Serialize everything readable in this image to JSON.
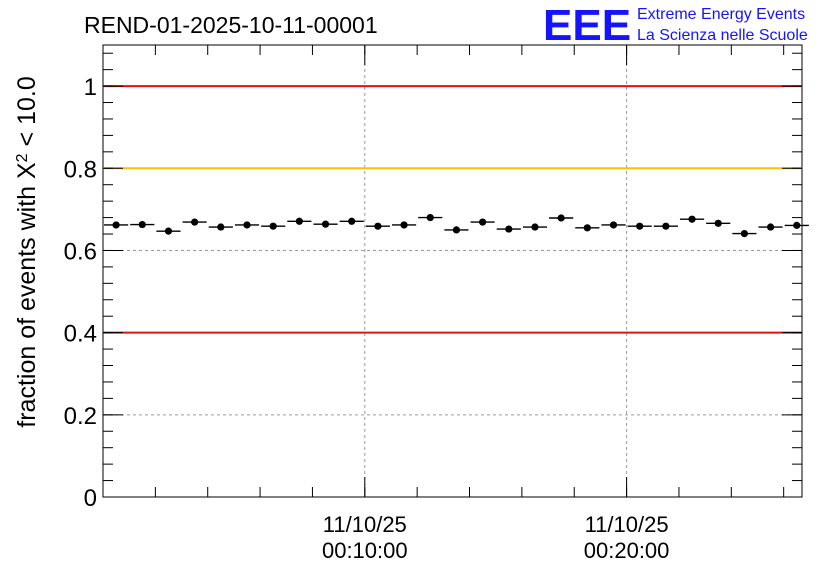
{
  "chart_data": {
    "type": "scatter",
    "title": "REND-01-2025-10-11-00001",
    "xlabel": "",
    "ylabel": "fraction of events with X² < 10.0",
    "ylabel_parts": {
      "prefix": "fraction of events with X",
      "sup": "2",
      "suffix": " < 10.0"
    },
    "xlim_minutes": [
      0,
      26.7
    ],
    "ylim": [
      0,
      1.1
    ],
    "yticks": [
      {
        "value": 0,
        "label": "0"
      },
      {
        "value": 0.2,
        "label": "0.2"
      },
      {
        "value": 0.4,
        "label": "0.4"
      },
      {
        "value": 0.6,
        "label": "0.6"
      },
      {
        "value": 0.8,
        "label": "0.8"
      },
      {
        "value": 1,
        "label": "1"
      }
    ],
    "xticks": [
      {
        "minute": 10,
        "date": "11/10/25",
        "time": "00:10:00"
      },
      {
        "minute": 20,
        "date": "11/10/25",
        "time": "00:20:00"
      }
    ],
    "minor_xtick_step_minutes": 2,
    "grid": true,
    "reference_lines": [
      {
        "y": 1.0,
        "color": "#e8100c"
      },
      {
        "y": 0.8,
        "color": "#ffc000"
      },
      {
        "y": 0.4,
        "color": "#e8100c"
      }
    ],
    "bin_width_minutes": 1,
    "x": [
      0.5,
      1.5,
      2.5,
      3.5,
      4.5,
      5.5,
      6.5,
      7.5,
      8.5,
      9.5,
      10.5,
      11.5,
      12.5,
      13.5,
      14.5,
      15.5,
      16.5,
      17.5,
      18.5,
      19.5,
      20.5,
      21.5,
      22.5,
      23.5,
      24.5,
      25.5,
      26.5
    ],
    "values": [
      0.662,
      0.663,
      0.647,
      0.669,
      0.657,
      0.662,
      0.659,
      0.671,
      0.664,
      0.671,
      0.659,
      0.662,
      0.68,
      0.65,
      0.669,
      0.652,
      0.657,
      0.679,
      0.655,
      0.662,
      0.659,
      0.659,
      0.676,
      0.666,
      0.641,
      0.657,
      0.661
    ],
    "error": 0.006,
    "marker_color": "#000000"
  },
  "logo": {
    "letters": "EEE",
    "line1": "Extreme Energy Events",
    "line2": "La Scienza nelle Scuole",
    "color": "#1414ff"
  }
}
